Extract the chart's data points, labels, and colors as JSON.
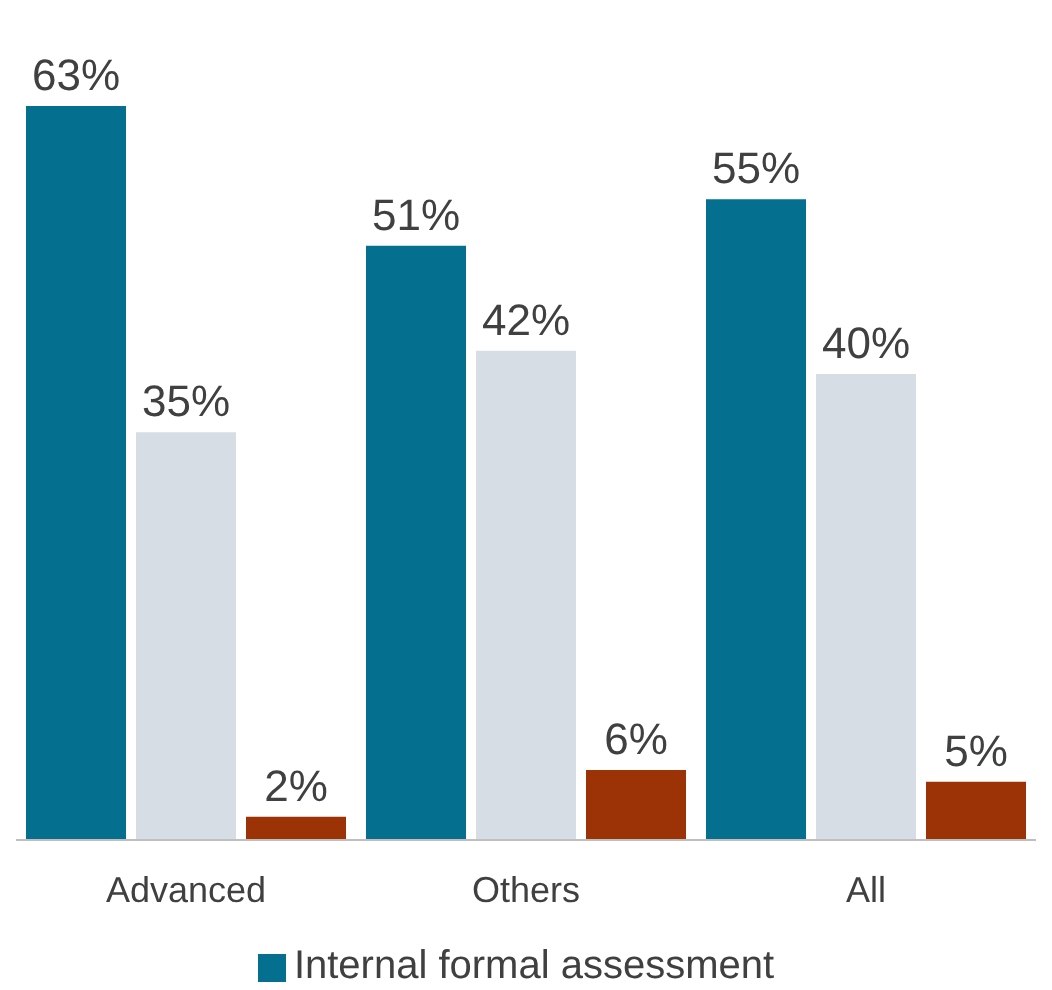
{
  "chart_data": {
    "type": "bar",
    "categories": [
      "Advanced",
      "Others",
      "All"
    ],
    "legend": "bottom",
    "series": [
      {
        "name": "Internal formal assessment",
        "color": "#046f8f",
        "values": [
          63,
          51,
          55
        ],
        "value_labels": [
          "63%",
          "51%",
          "55%"
        ]
      },
      {
        "color": "#d6dde4",
        "values": [
          35,
          42,
          40
        ],
        "value_labels": [
          "35%",
          "42%",
          "40%"
        ]
      },
      {
        "color": "#9b3306",
        "values": [
          2,
          6,
          5
        ],
        "value_labels": [
          "2%",
          "6%",
          "5%"
        ]
      }
    ]
  }
}
